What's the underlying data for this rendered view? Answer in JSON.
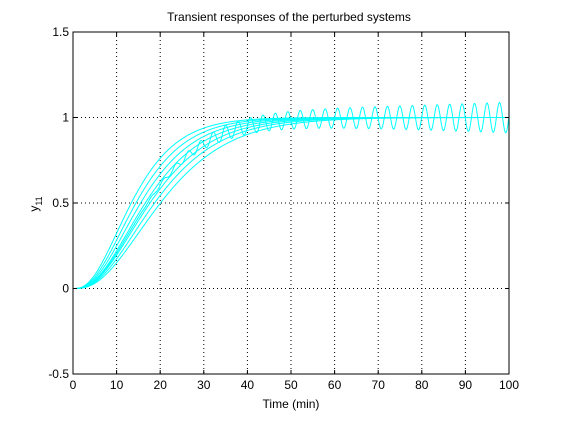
{
  "chart_data": {
    "type": "line",
    "title": "Transient responses of the perturbed systems",
    "xlabel": "Time (min)",
    "ylabel_main": "y",
    "ylabel_sub": "11",
    "xlim": [
      0,
      100
    ],
    "ylim": [
      -0.5,
      1.5
    ],
    "xticks": [
      0,
      10,
      20,
      30,
      40,
      50,
      60,
      70,
      80,
      90,
      100
    ],
    "yticks": [
      -0.5,
      0,
      0.5,
      1,
      1.5
    ],
    "xtick_labels": [
      "0",
      "10",
      "20",
      "30",
      "40",
      "50",
      "60",
      "70",
      "80",
      "90",
      "100"
    ],
    "ytick_labels": [
      "-0.5",
      "0",
      "0.5",
      "1",
      "1.5"
    ],
    "grid": true,
    "line_color": "#00ffff",
    "series_params": [
      {
        "tau": 7.5,
        "order": 3,
        "amp": 0.0,
        "freq": 0.5,
        "growth": 0.0
      },
      {
        "tau": 7.0,
        "order": 3,
        "amp": 0.0,
        "freq": 0.5,
        "growth": 0.0
      },
      {
        "tau": 6.6,
        "order": 3,
        "amp": 0.0,
        "freq": 0.5,
        "growth": 0.0
      },
      {
        "tau": 6.2,
        "order": 3,
        "amp": 0.0,
        "freq": 0.5,
        "growth": 0.0
      },
      {
        "tau": 5.8,
        "order": 3,
        "amp": 0.0,
        "freq": 0.5,
        "growth": 0.0
      },
      {
        "tau": 5.4,
        "order": 3,
        "amp": 0.0,
        "freq": 0.5,
        "growth": 0.0
      },
      {
        "tau": 5.0,
        "order": 3,
        "amp": 0.0,
        "freq": 0.5,
        "growth": 0.0
      },
      {
        "tau": 6.4,
        "order": 3,
        "amp": 0.03,
        "freq": 2.2,
        "growth": 0.011
      }
    ]
  }
}
